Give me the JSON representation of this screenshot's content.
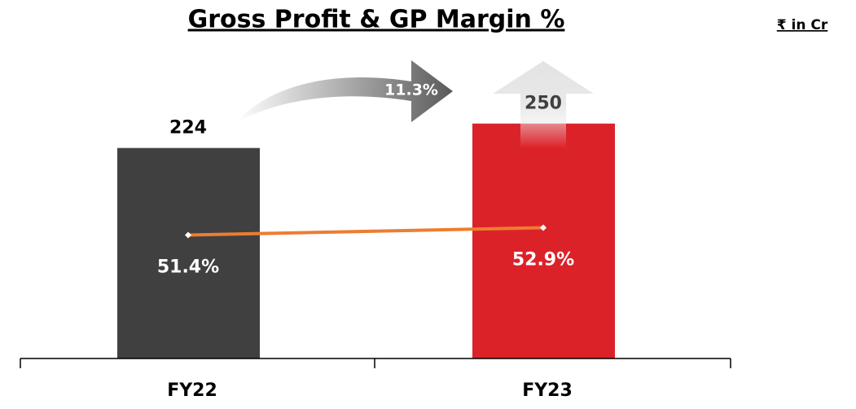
{
  "chart_data": {
    "type": "bar",
    "title": "Gross Profit & GP Margin %",
    "unit_label": "₹ in Cr",
    "annotation": "11.3%",
    "categories": [
      "FY22",
      "FY23"
    ],
    "series": [
      {
        "colors": [
          "#404040",
          "#dc2229"
        ],
        "values": [
          224,
          250
        ]
      },
      {
        "type": "line",
        "axis": "y2",
        "color": "#ed7d31",
        "values": [
          51.4,
          52.9
        ],
        "value_labels": [
          "51.4%",
          "52.9%"
        ]
      }
    ],
    "ylim": [
      0,
      300
    ],
    "y2lim": [
      26,
      84
    ]
  }
}
